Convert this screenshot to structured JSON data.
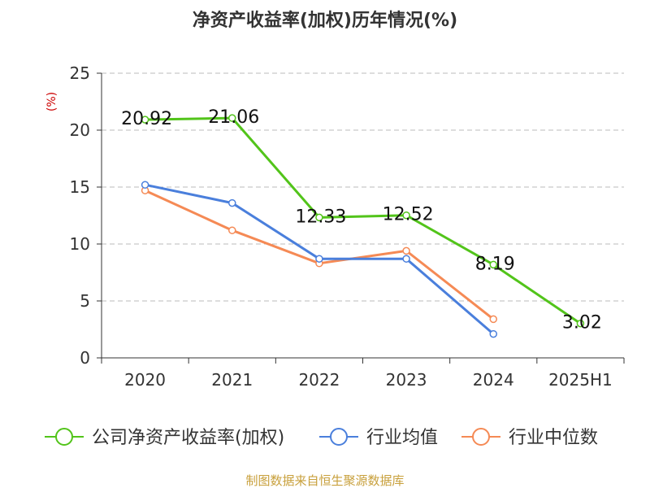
{
  "chart_data": {
    "type": "line",
    "title": "净资产收益率(加权)历年情况(%)",
    "ylabel": "(%)",
    "xlabel": "",
    "categories": [
      "2020",
      "2021",
      "2022",
      "2023",
      "2024",
      "2025H1"
    ],
    "ylim": [
      0,
      25
    ],
    "yticks": [
      0,
      5,
      10,
      15,
      20,
      25
    ],
    "grid": true,
    "legend_position": "bottom",
    "series": [
      {
        "name": "公司净资产收益率(加权)",
        "color": "#52c41a",
        "values": [
          20.92,
          21.06,
          12.33,
          12.52,
          8.19,
          3.02
        ],
        "labels": [
          "20.92",
          "21.06",
          "12.33",
          "12.52",
          "8.19",
          "3.02"
        ]
      },
      {
        "name": "行业均值",
        "color": "#4a7fdc",
        "values": [
          15.2,
          13.6,
          8.7,
          8.7,
          2.1,
          null
        ]
      },
      {
        "name": "行业中位数",
        "color": "#f58a55",
        "values": [
          14.7,
          11.2,
          8.3,
          9.4,
          3.4,
          null
        ]
      }
    ]
  },
  "colors": {
    "ylabel": "#cc0000",
    "source": "#c8a03c",
    "axis": "#333333",
    "grid": "#bbbbbb"
  },
  "source": "制图数据来自恒生聚源数据库"
}
